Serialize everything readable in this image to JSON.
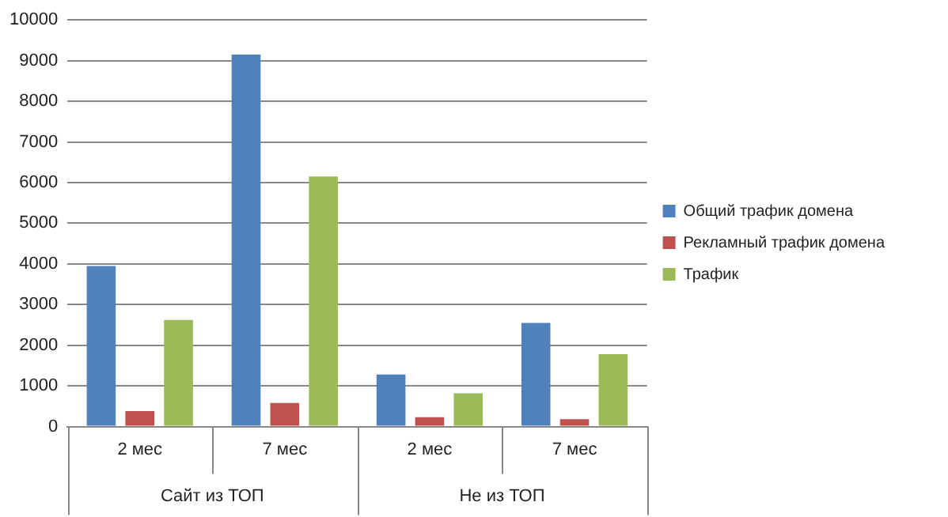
{
  "chart_data": {
    "type": "bar",
    "categories": [
      "2 мес",
      "7 мес",
      "2 мес",
      "7 мес"
    ],
    "series": [
      {
        "name": "Общий трафик домена",
        "color": "#4f81bd",
        "values": [
          3950,
          9150,
          1280,
          2550
        ]
      },
      {
        "name": "Рекламный трафик домена",
        "color": "#c0504d",
        "values": [
          380,
          580,
          230,
          180
        ]
      },
      {
        "name": "Трафик",
        "color": "#9bbb59",
        "values": [
          2620,
          6150,
          820,
          1780
        ]
      }
    ],
    "annotations": [
      "Сайт из ТОП",
      "Не из ТОП"
    ],
    "ylim": [
      0,
      10000
    ],
    "yticks": [
      0,
      1000,
      2000,
      3000,
      4000,
      5000,
      6000,
      7000,
      8000,
      9000,
      10000
    ],
    "grid": "y",
    "legend": "right"
  }
}
